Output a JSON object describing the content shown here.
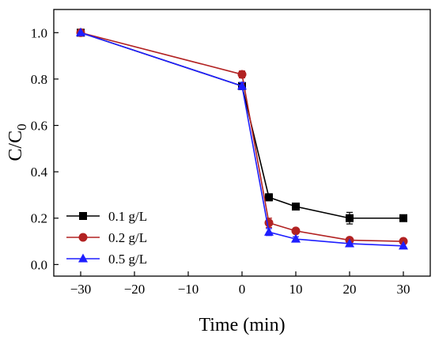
{
  "chart_data": {
    "type": "line",
    "xlabel": "Time (min)",
    "ylabel": "C/C",
    "ylabel_sub": "0",
    "xlim": [
      -35,
      35
    ],
    "ylim": [
      -0.05,
      1.1
    ],
    "xticks": [
      -30,
      -20,
      -10,
      0,
      10,
      20,
      30
    ],
    "xtick_labels": [
      "−30",
      "−20",
      "−10",
      "0",
      "10",
      "20",
      "30"
    ],
    "yticks": [
      0.0,
      0.2,
      0.4,
      0.6,
      0.8,
      1.0
    ],
    "ytick_labels": [
      "0.0",
      "0.2",
      "0.4",
      "0.6",
      "0.8",
      "1.0"
    ],
    "grid": false,
    "legend_position": "lower-left",
    "x": [
      -30,
      0,
      5,
      10,
      20,
      30
    ],
    "series": [
      {
        "name": "0.1 g/L",
        "color": "#000000",
        "marker": "square",
        "values": [
          1.0,
          0.77,
          0.29,
          0.25,
          0.2,
          0.2
        ],
        "errors": [
          0.005,
          0.015,
          0.015,
          0.01,
          0.025,
          0.01
        ]
      },
      {
        "name": "0.2 g/L",
        "color": "#b22222",
        "marker": "circle",
        "values": [
          1.0,
          0.82,
          0.18,
          0.145,
          0.105,
          0.1
        ],
        "errors": [
          0.005,
          0.015,
          0.02,
          0.01,
          0.01,
          0.005
        ]
      },
      {
        "name": "0.5 g/L",
        "color": "#1e1eff",
        "marker": "triangle",
        "values": [
          1.0,
          0.77,
          0.14,
          0.11,
          0.09,
          0.08
        ],
        "errors": [
          0.005,
          0.015,
          0.015,
          0.01,
          0.005,
          0.005
        ]
      }
    ]
  }
}
